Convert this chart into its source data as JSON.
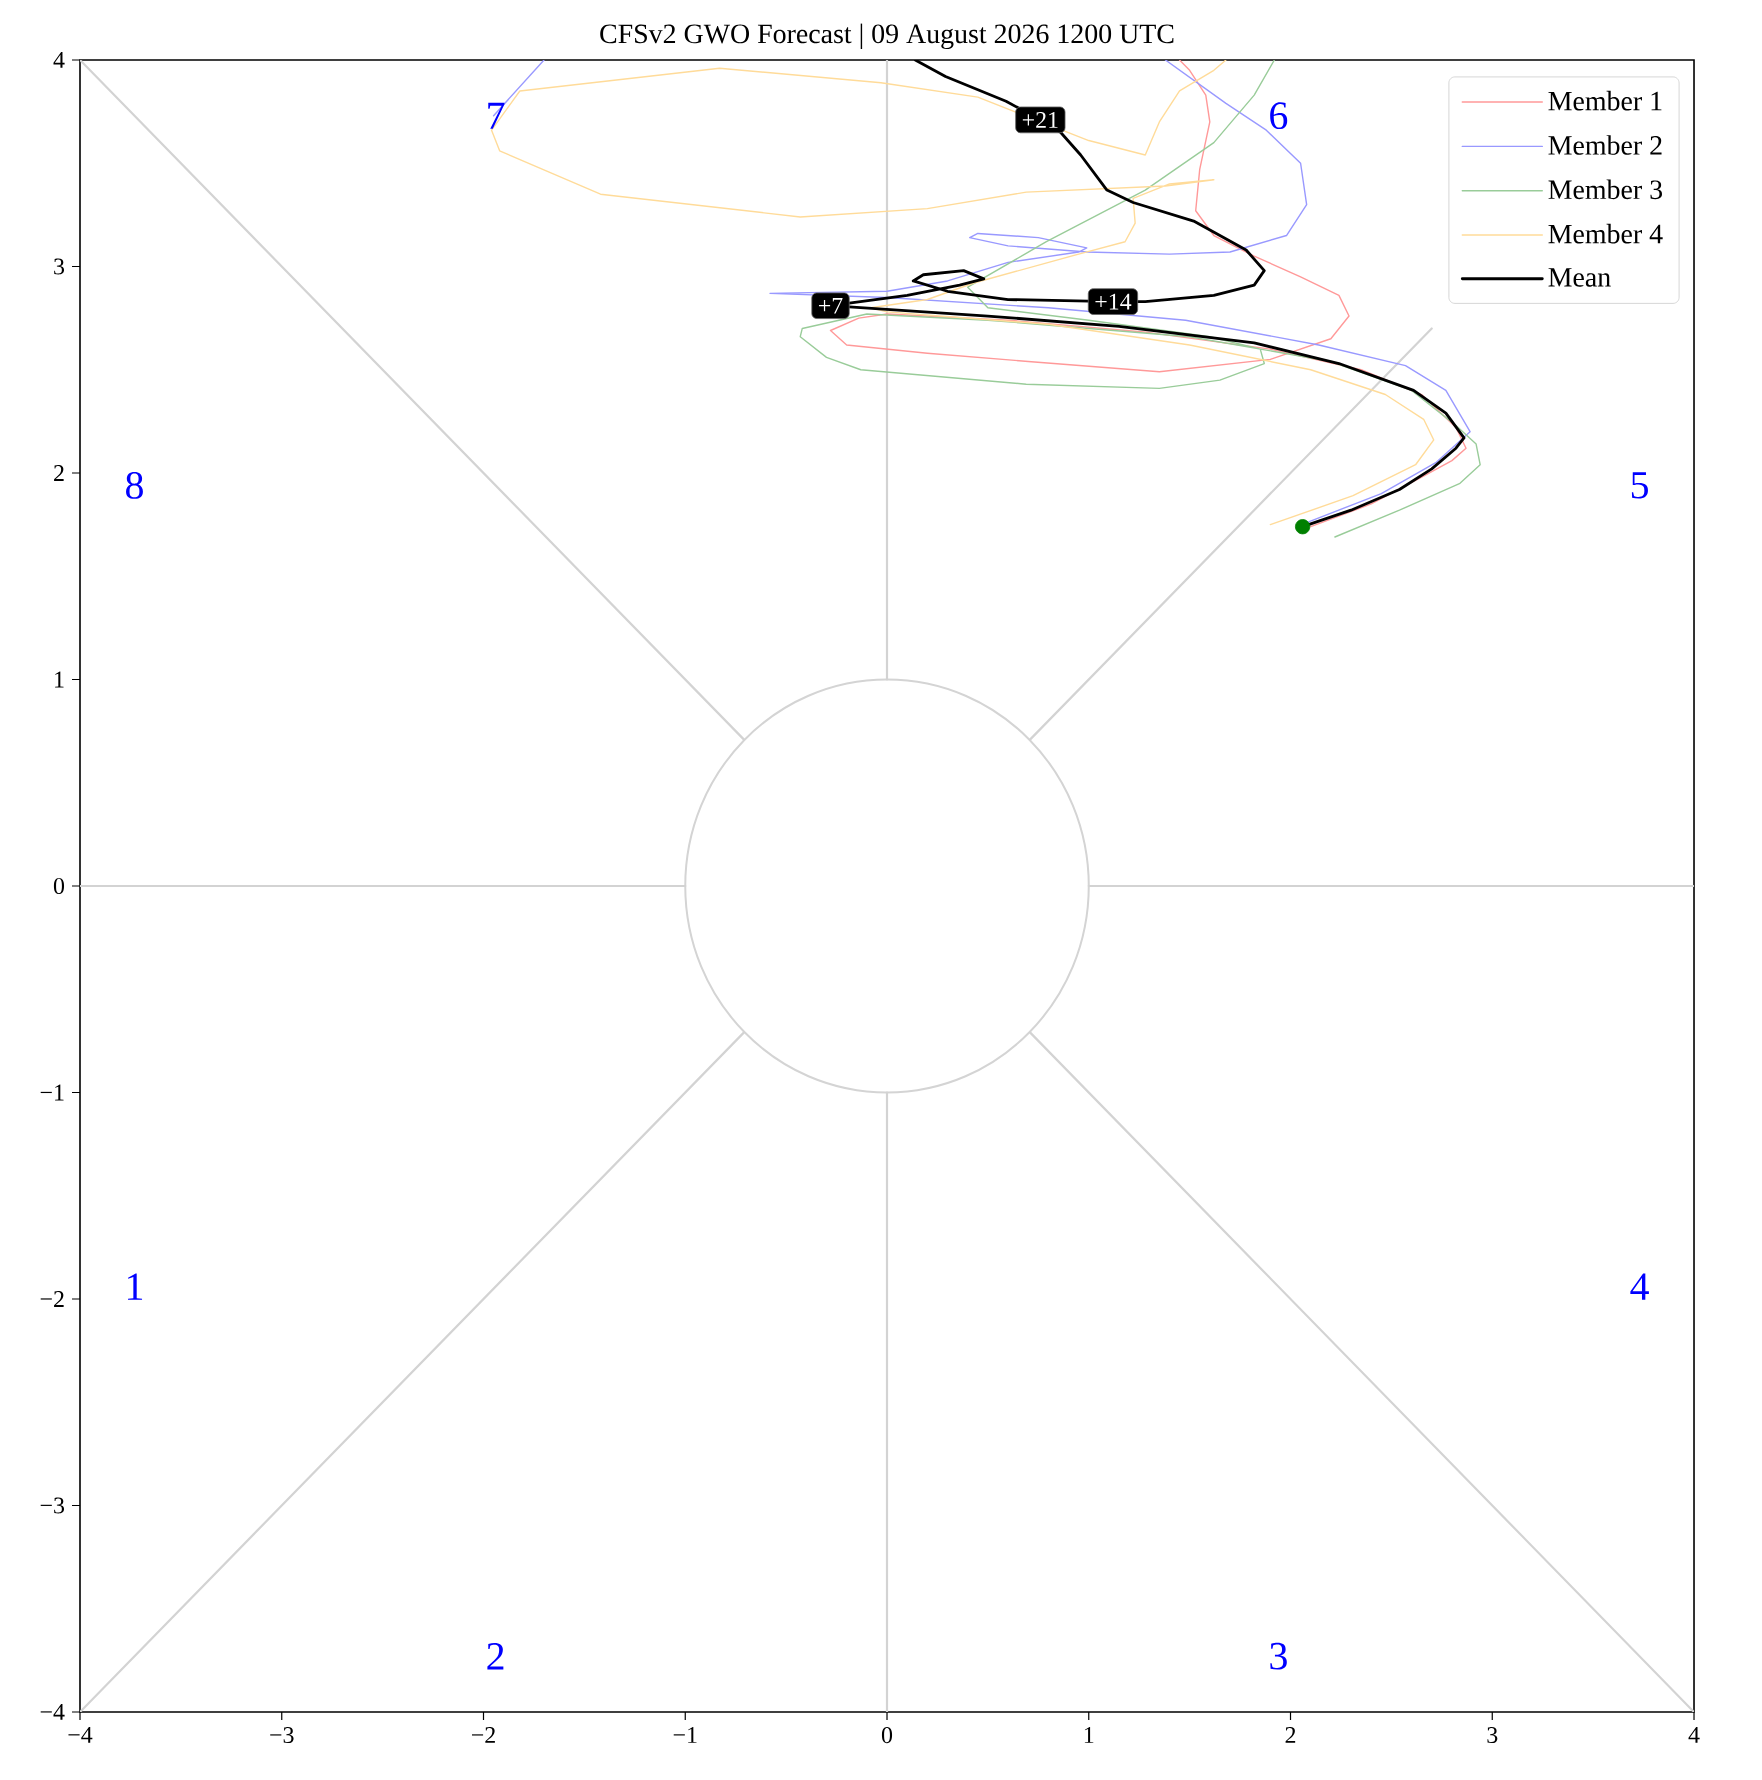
{
  "chart_data": {
    "type": "line",
    "title": "CFSv2 GWO Forecast | 09 August 2026 1200 UTC",
    "xlim": [
      -4,
      4
    ],
    "ylim": [
      -4,
      4
    ],
    "xticks": [
      {
        "value": -4,
        "label": "−4"
      },
      {
        "value": -3,
        "label": "−3"
      },
      {
        "value": -2,
        "label": "−2"
      },
      {
        "value": -1,
        "label": "−1"
      },
      0,
      1,
      2,
      3,
      4
    ],
    "yticks": [
      {
        "value": -4,
        "label": "−4"
      },
      {
        "value": -3,
        "label": "−3"
      },
      {
        "value": -2,
        "label": "−2"
      },
      {
        "value": -1,
        "label": "−1"
      },
      0,
      1,
      2,
      3,
      4
    ],
    "legend": "top right",
    "series": [
      {
        "color": "#d3d3d3",
        "x": [
          0,
          0
        ],
        "values": [
          1,
          4
        ]
      },
      {
        "color": "#d3d3d3",
        "x": [
          0.71,
          2.7
        ],
        "values": [
          0.71,
          2.7
        ]
      },
      {
        "color": "#d3d3d3",
        "x": [
          1,
          4
        ],
        "values": [
          0,
          0
        ]
      },
      {
        "color": "#d3d3d3",
        "x": [
          0.71,
          4
        ],
        "values": [
          -0.71,
          -4
        ]
      },
      {
        "color": "#d3d3d3",
        "x": [
          0,
          0
        ],
        "values": [
          -1,
          -4
        ]
      },
      {
        "color": "#d3d3d3",
        "x": [
          -0.71,
          -4
        ],
        "values": [
          -0.71,
          -4
        ]
      },
      {
        "color": "#d3d3d3",
        "x": [
          -1,
          -4
        ],
        "values": [
          0,
          0
        ]
      },
      {
        "color": "#d3d3d3",
        "x": [
          -0.71,
          -4
        ],
        "values": [
          0.71,
          4
        ]
      },
      {
        "name": "Member 1",
        "color": "#ff9999",
        "x": [
          2.1,
          2.4,
          2.65,
          2.8,
          2.87,
          2.82,
          2.65,
          2.35,
          1.9,
          1.3,
          0.6,
          0.0,
          -0.14,
          -0.28,
          -0.2,
          0.2,
          0.7,
          1.35,
          1.9,
          2.2,
          2.29,
          2.24,
          2.05,
          1.82,
          1.62,
          1.53,
          1.55,
          1.6,
          1.58,
          1.5,
          1.45
        ],
        "values": [
          1.74,
          1.85,
          1.98,
          2.06,
          2.12,
          2.22,
          2.38,
          2.5,
          2.6,
          2.68,
          2.74,
          2.77,
          2.75,
          2.69,
          2.62,
          2.58,
          2.54,
          2.49,
          2.55,
          2.65,
          2.76,
          2.86,
          2.95,
          3.05,
          3.15,
          3.27,
          3.47,
          3.7,
          3.83,
          3.95,
          4.0
        ]
      },
      {
        "name": "Member 2",
        "color": "#9999ff",
        "x": [
          2.08,
          2.45,
          2.72,
          2.89,
          2.77,
          2.57,
          2.14,
          1.48,
          0.8,
          0.0,
          -0.58,
          0.0,
          0.3,
          0.6,
          0.95,
          0.99,
          0.75,
          0.45,
          0.41,
          0.6,
          0.99,
          1.4,
          1.7,
          1.98,
          2.08,
          2.05,
          1.88,
          1.68,
          1.38,
          null,
          -1.7,
          -1.95
        ],
        "values": [
          1.76,
          1.9,
          2.05,
          2.2,
          2.4,
          2.52,
          2.62,
          2.74,
          2.8,
          2.85,
          2.87,
          2.88,
          2.93,
          3.02,
          3.07,
          3.09,
          3.14,
          3.16,
          3.14,
          3.1,
          3.07,
          3.06,
          3.07,
          3.15,
          3.3,
          3.5,
          3.66,
          3.79,
          4.0,
          null,
          4.0,
          3.73
        ]
      },
      {
        "name": "Member 3",
        "color": "#99cc99",
        "x": [
          2.22,
          2.54,
          2.84,
          2.94,
          2.92,
          2.82,
          2.6,
          2.2,
          1.5,
          0.5,
          -0.1,
          -0.42,
          -0.43,
          -0.3,
          -0.13,
          0.69,
          1.35,
          1.65,
          1.87,
          1.85,
          1.6,
          1.0,
          0.5,
          0.4,
          0.79,
          1.28,
          1.62,
          1.82,
          1.92
        ],
        "values": [
          1.69,
          1.82,
          1.95,
          2.04,
          2.14,
          2.23,
          2.4,
          2.54,
          2.66,
          2.74,
          2.77,
          2.7,
          2.66,
          2.56,
          2.5,
          2.43,
          2.41,
          2.45,
          2.53,
          2.6,
          2.66,
          2.74,
          2.8,
          2.9,
          3.12,
          3.37,
          3.6,
          3.83,
          4.0
        ]
      },
      {
        "name": "Member 4",
        "color": "#ffdb99",
        "x": [
          1.9,
          2.31,
          2.62,
          2.71,
          2.66,
          2.47,
          2.1,
          1.5,
          0.8,
          0.0,
          -0.08,
          0.2,
          0.43,
          0.95,
          1.18,
          1.23,
          1.22,
          1.4,
          1.62,
          1.38,
          0.69,
          0.2,
          -0.43,
          -1.42,
          -1.92,
          -1.96,
          -1.82,
          -0.83,
          -0.03,
          0.45,
          1.0,
          1.28,
          1.35,
          1.45,
          1.62,
          1.68
        ],
        "values": [
          1.75,
          1.89,
          2.04,
          2.16,
          2.26,
          2.38,
          2.5,
          2.62,
          2.72,
          2.78,
          2.8,
          2.84,
          2.92,
          3.06,
          3.12,
          3.21,
          3.33,
          3.4,
          3.42,
          3.39,
          3.36,
          3.28,
          3.24,
          3.35,
          3.56,
          3.66,
          3.85,
          3.96,
          3.89,
          3.82,
          3.61,
          3.54,
          3.7,
          3.85,
          3.95,
          4.0
        ]
      },
      {
        "name": "Mean",
        "color": "#000000",
        "x": [
          2.06,
          2.3,
          2.54,
          2.7,
          2.82,
          2.86,
          2.77,
          2.61,
          2.24,
          1.82,
          1.15,
          0.5,
          -0.28,
          0.1,
          0.36,
          0.48,
          0.38,
          0.18,
          0.13,
          0.3,
          0.6,
          1.12,
          1.28,
          1.62,
          1.82,
          1.87,
          1.78,
          1.52,
          1.22,
          1.09,
          0.96,
          0.86,
          0.76,
          0.59,
          0.29,
          0.14
        ],
        "values": [
          1.74,
          1.82,
          1.92,
          2.02,
          2.12,
          2.17,
          2.29,
          2.4,
          2.53,
          2.63,
          2.71,
          2.76,
          2.81,
          2.86,
          2.91,
          2.94,
          2.98,
          2.96,
          2.93,
          2.88,
          2.84,
          2.83,
          2.83,
          2.86,
          2.91,
          2.98,
          3.08,
          3.22,
          3.31,
          3.37,
          3.54,
          3.65,
          3.71,
          3.8,
          3.92,
          4.0
        ]
      },
      {
        "type": "scatter",
        "color": "#008000",
        "x": [
          2.06
        ],
        "values": [
          1.74
        ]
      }
    ],
    "annotations": [
      "1",
      "2",
      "3",
      "4",
      "5",
      "6",
      "7",
      "8",
      {
        "text": "+7",
        "x": -0.28,
        "y": 2.81
      },
      {
        "text": "+14",
        "x": 1.12,
        "y": 2.83
      },
      {
        "text": "+21",
        "x": 0.76,
        "y": 3.71
      }
    ]
  }
}
